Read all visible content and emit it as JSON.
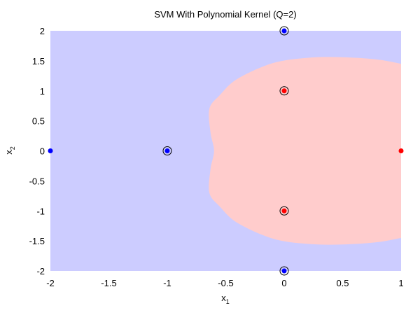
{
  "chart_data": {
    "type": "scatter",
    "title": "SVM With Polynomial Kernel (Q=2)",
    "xlabel": {
      "base": "x",
      "sub": "1"
    },
    "ylabel": {
      "base": "x",
      "sub": "2"
    },
    "xlim": [
      -2,
      1
    ],
    "ylim": [
      -2,
      2
    ],
    "xticks": [
      -2,
      -1.5,
      -1,
      -0.5,
      0,
      0.5,
      1
    ],
    "xtick_labels": [
      "-2",
      "-1.5",
      "-1",
      "-0.5",
      "0",
      "0.5",
      "1"
    ],
    "yticks": [
      -2,
      -1.5,
      -1,
      -0.5,
      0,
      0.5,
      1,
      1.5,
      2
    ],
    "ytick_labels": [
      "-2",
      "-1.5",
      "-1",
      "-0.5",
      "0",
      "0.5",
      "1",
      "1.5",
      "2"
    ],
    "grid": false,
    "regions": [
      {
        "class": "blue",
        "color": "#ccccff",
        "description": "background decision region"
      },
      {
        "class": "red",
        "color": "#ffcccc",
        "boundary": [
          [
            1.0,
            1.45
          ],
          [
            0.8,
            1.52
          ],
          [
            0.5,
            1.56
          ],
          [
            0.2,
            1.55
          ],
          [
            -0.1,
            1.46
          ],
          [
            -0.4,
            1.2
          ],
          [
            -0.55,
            0.93
          ],
          [
            -0.64,
            0.7
          ],
          [
            -0.63,
            0.3
          ],
          [
            -0.6,
            0.0
          ],
          [
            -0.63,
            -0.3
          ],
          [
            -0.64,
            -0.7
          ],
          [
            -0.55,
            -0.93
          ],
          [
            -0.4,
            -1.2
          ],
          [
            -0.1,
            -1.46
          ],
          [
            0.2,
            -1.55
          ],
          [
            0.5,
            -1.56
          ],
          [
            0.8,
            -1.52
          ],
          [
            1.0,
            -1.45
          ]
        ]
      }
    ],
    "series": [
      {
        "color": "#0000ff",
        "points": [
          {
            "x": 0,
            "y": 2,
            "support_vector": true
          },
          {
            "x": -1,
            "y": 0,
            "support_vector": true
          },
          {
            "x": 0,
            "y": -2,
            "support_vector": true
          },
          {
            "x": -2,
            "y": 0,
            "support_vector": false
          }
        ]
      },
      {
        "color": "#ff0000",
        "points": [
          {
            "x": 0,
            "y": 1,
            "support_vector": true
          },
          {
            "x": 0,
            "y": -1,
            "support_vector": true
          },
          {
            "x": 1,
            "y": 0,
            "support_vector": false
          }
        ]
      }
    ]
  }
}
